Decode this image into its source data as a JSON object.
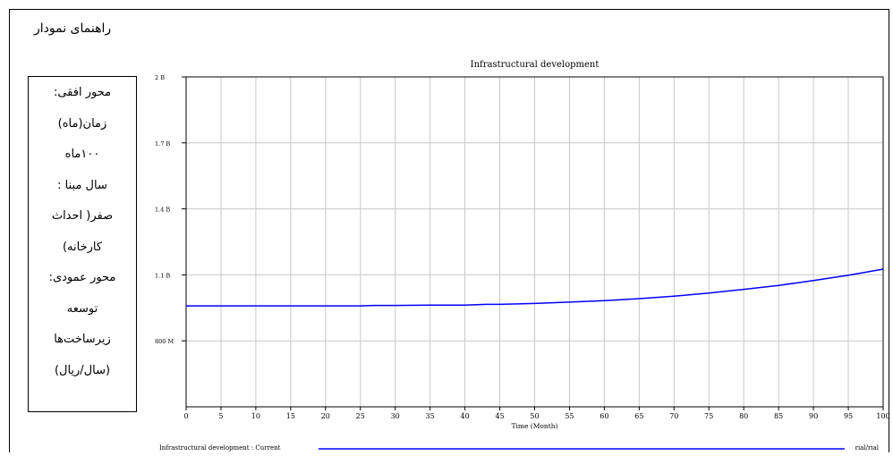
{
  "guide": {
    "title": "راهنمای نمودار",
    "lines": [
      "محور افقی:",
      "زمان(ماه)",
      "۱۰۰ماه",
      "سال مبنا :",
      "صفر( احداث",
      "کارخانه)",
      "محور عمودی:",
      "توسعه",
      "زیرساخت‌ها",
      "(سال/ریال)"
    ]
  },
  "chart_data": {
    "type": "line",
    "title": "Infrastructural development",
    "xlabel": "Time (Month)",
    "xlim": [
      0,
      100
    ],
    "x_ticks": [
      0,
      5,
      10,
      15,
      20,
      25,
      30,
      35,
      40,
      45,
      50,
      55,
      60,
      65,
      70,
      75,
      80,
      85,
      90,
      95,
      100
    ],
    "ylim": [
      0.5,
      2.0
    ],
    "y_ticks": [
      {
        "value": 2.0,
        "label": "2 B"
      },
      {
        "value": 1.7,
        "label": "1.7 B"
      },
      {
        "value": 1.4,
        "label": "1.4 B"
      },
      {
        "value": 1.1,
        "label": "1.1 B"
      },
      {
        "value": 0.8,
        "label": "800 M"
      }
    ],
    "grid": true,
    "series": [
      {
        "name": "Infrastructural development : Current",
        "unit": "rial/rial",
        "color": "#0000ff",
        "x": [
          0,
          5,
          10,
          15,
          20,
          25,
          27,
          30,
          35,
          40,
          43,
          45,
          50,
          55,
          60,
          65,
          70,
          75,
          80,
          85,
          90,
          95,
          100
        ],
        "y": [
          0.959,
          0.959,
          0.959,
          0.959,
          0.959,
          0.959,
          0.961,
          0.961,
          0.962,
          0.962,
          0.966,
          0.966,
          0.97,
          0.976,
          0.983,
          0.992,
          1.003,
          1.017,
          1.034,
          1.052,
          1.074,
          1.098,
          1.126
        ]
      }
    ]
  }
}
